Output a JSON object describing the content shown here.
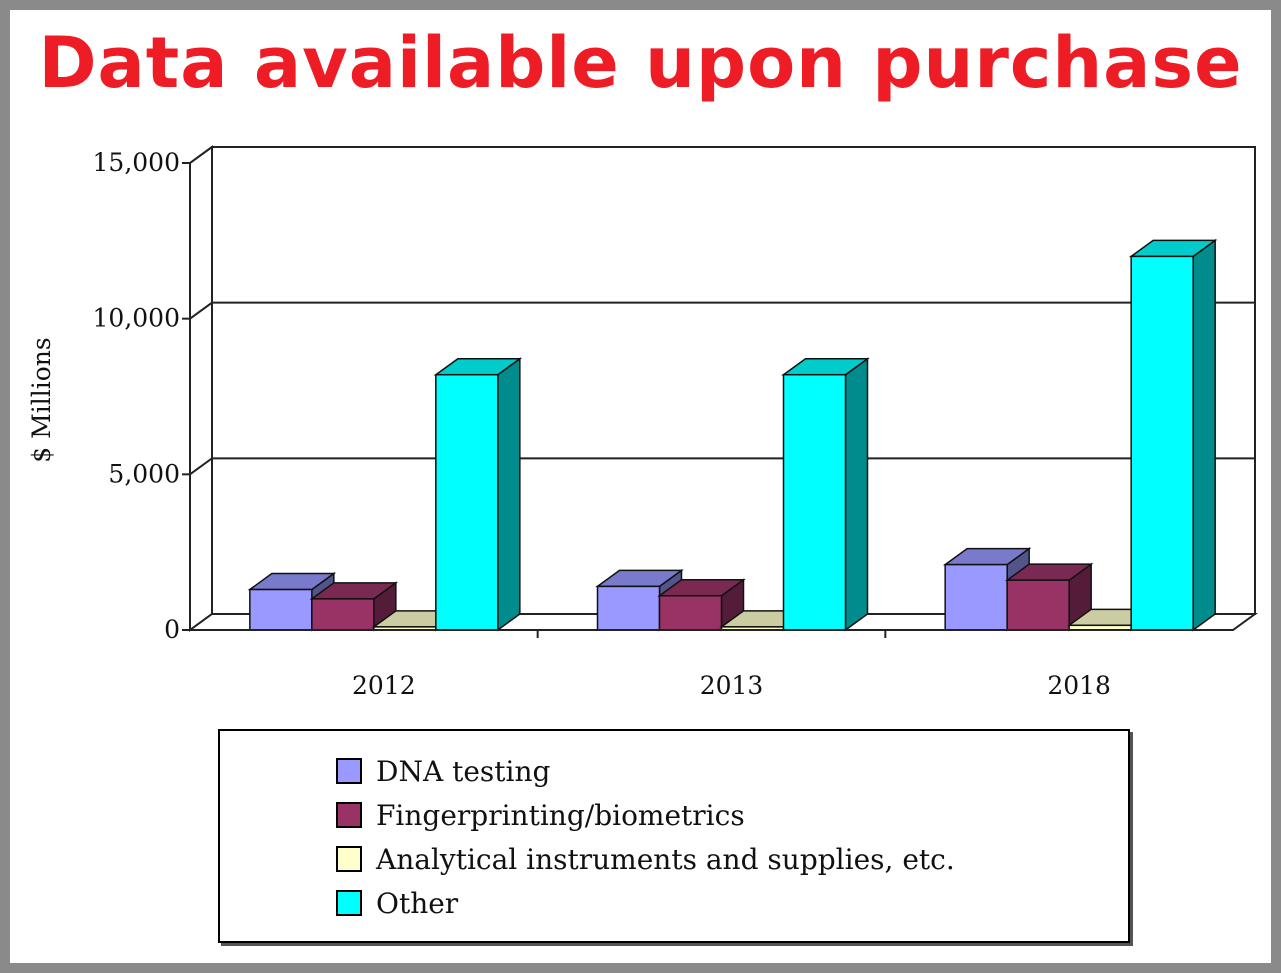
{
  "banner": "Data available upon purchase",
  "chart_data": {
    "type": "bar",
    "title": "",
    "xlabel": "",
    "ylabel": "$ Millions",
    "ylim": [
      0,
      15000
    ],
    "yticks": [
      0,
      5000,
      10000,
      15000
    ],
    "ytick_labels": [
      "0",
      "5,000",
      "10,000",
      "15,000"
    ],
    "categories": [
      "2012",
      "2013",
      "2018"
    ],
    "grid": true,
    "legend_position": "bottom",
    "series": [
      {
        "name": "DNA testing",
        "color": "#9999ff",
        "values": [
          1300,
          1400,
          2100
        ]
      },
      {
        "name": "Fingerprinting/biometrics",
        "color": "#993366",
        "values": [
          1000,
          1100,
          1600
        ]
      },
      {
        "name": "Analytical instruments and supplies, etc.",
        "color": "#ffffcc",
        "values": [
          100,
          100,
          150
        ]
      },
      {
        "name": "Other",
        "color": "#00ffff",
        "values": [
          8200,
          8200,
          12000
        ]
      }
    ]
  }
}
